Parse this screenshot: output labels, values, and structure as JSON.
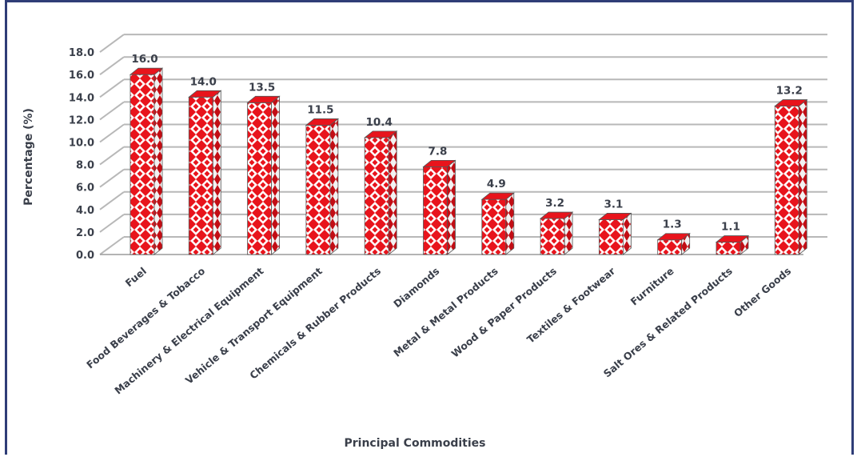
{
  "chart_data": {
    "type": "bar",
    "title": "",
    "xlabel": "Principal Commodities",
    "ylabel": "Percentage (%)",
    "ylim": [
      0,
      18
    ],
    "yticks": [
      "0.0",
      "2.0",
      "4.0",
      "6.0",
      "8.0",
      "10.0",
      "12.0",
      "14.0",
      "16.0",
      "18.0"
    ],
    "grid": true,
    "categories": [
      "Fuel",
      "Food Beverages & Tobacco",
      "Machinery & Electrical Equipment",
      "Vehicle & Transport Equipment",
      "Chemicals & Rubber Products",
      "Diamonds",
      "Metal & Metal Products",
      "Wood & Paper Products",
      "Textiles & Footwear",
      "Furniture",
      "Salt Ores & Related Products",
      "Other Goods"
    ],
    "values": [
      16.0,
      14.0,
      13.5,
      11.5,
      10.4,
      7.8,
      4.9,
      3.2,
      3.1,
      1.3,
      1.1,
      13.2
    ],
    "data_labels": [
      "16.0",
      "14.0",
      "13.5",
      "11.5",
      "10.4",
      "7.8",
      "4.9",
      "3.2",
      "3.1",
      "1.3",
      "1.1",
      "13.2"
    ],
    "colors": {
      "bar": "#e8141c",
      "bar_light": "#ffffff",
      "grid": "#b8b8b8",
      "frame": "#2f3d77"
    }
  }
}
